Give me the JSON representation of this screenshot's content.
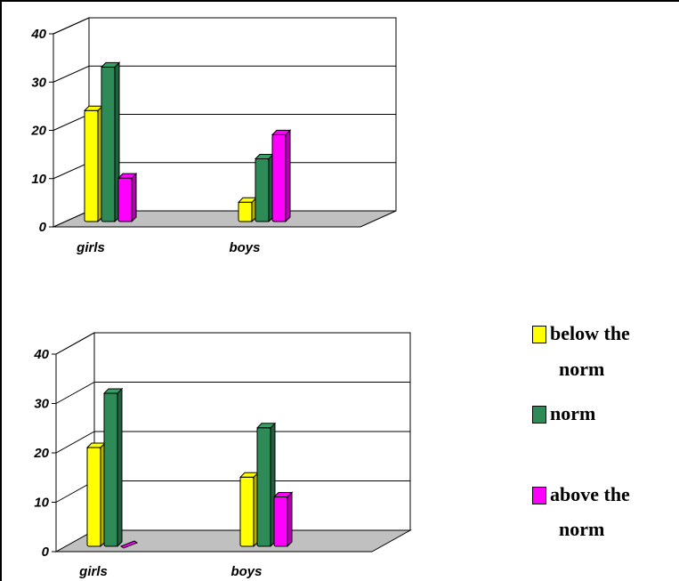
{
  "colors": {
    "below": "#ffff00",
    "norm": "#2e8b57",
    "above": "#ff00ff",
    "floor": "#c0c0c0"
  },
  "legend": {
    "items": [
      {
        "key": "below",
        "line1": "below the",
        "line2": "norm"
      },
      {
        "key": "norm",
        "line1": "norm",
        "line2": ""
      },
      {
        "key": "above",
        "line1": "above the",
        "line2": "norm"
      }
    ]
  },
  "chart_data": [
    {
      "type": "bar",
      "categories": [
        "girls",
        "boys"
      ],
      "series": [
        {
          "name": "below the norm",
          "values": [
            23,
            4
          ]
        },
        {
          "name": "norm",
          "values": [
            32,
            13
          ]
        },
        {
          "name": "above the norm",
          "values": [
            9,
            18
          ]
        }
      ],
      "ylim": [
        0,
        40
      ],
      "yticks": [
        "0",
        "10",
        "20",
        "30",
        "40"
      ],
      "grid": true
    },
    {
      "type": "bar",
      "categories": [
        "girls",
        "boys"
      ],
      "series": [
        {
          "name": "below the norm",
          "values": [
            20,
            14
          ]
        },
        {
          "name": "norm",
          "values": [
            31,
            24
          ]
        },
        {
          "name": "above the norm",
          "values": [
            0,
            10
          ]
        }
      ],
      "ylim": [
        0,
        40
      ],
      "yticks": [
        "0",
        "10",
        "20",
        "30",
        "40"
      ],
      "grid": true
    }
  ]
}
